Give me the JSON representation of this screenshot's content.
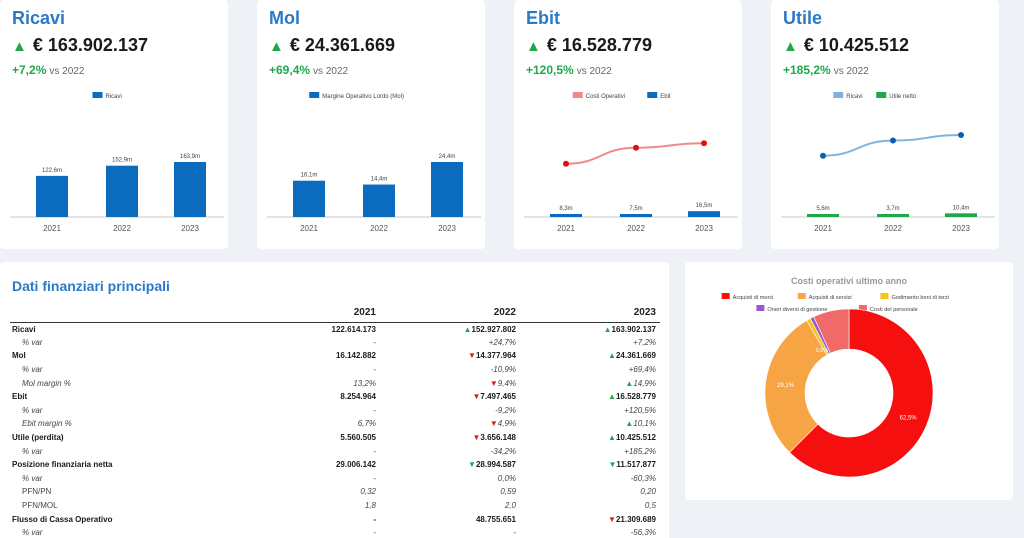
{
  "kpis": [
    {
      "title": "Ricavi",
      "value": "€ 163.902.137",
      "delta": "+7,2%",
      "vs": "vs 2022",
      "chart_data": {
        "type": "bar",
        "categories": [
          "2021",
          "2022",
          "2023"
        ],
        "series": [
          {
            "name": "Ricavi",
            "values": [
              122.6,
              152.9,
              163.9
            ],
            "labels": [
              "122,6m",
              "152,9m",
              "163,9m"
            ],
            "color": "#0b6bbf"
          }
        ]
      }
    },
    {
      "title": "Mol",
      "value": "€ 24.361.669",
      "delta": "+69,4%",
      "vs": "vs 2022",
      "chart_data": {
        "type": "bar",
        "categories": [
          "2021",
          "2022",
          "2023"
        ],
        "series": [
          {
            "name": "Margine Operativo Lordo (Mol)",
            "values": [
              16.1,
              14.4,
              24.4
            ],
            "labels": [
              "16,1m",
              "14,4m",
              "24,4m"
            ],
            "color": "#0b6bbf"
          }
        ]
      }
    },
    {
      "title": "Ebit",
      "value": "€ 16.528.779",
      "delta": "+120,5%",
      "vs": "vs 2022",
      "chart_data": {
        "type": "bar+line",
        "categories": [
          "2021",
          "2022",
          "2023"
        ],
        "series": [
          {
            "name": "Costi Operativi",
            "kind": "line",
            "values": [
              106.5,
              138.5,
              147.4
            ],
            "color": "#f08a8a",
            "dot": "#e01010"
          },
          {
            "name": "Ebit",
            "kind": "bar",
            "values": [
              8.3,
              7.5,
              16.5
            ],
            "labels": [
              "8,3m",
              "7,5m",
              "16,5m"
            ],
            "color": "#0b6bbf"
          }
        ]
      }
    },
    {
      "title": "Utile",
      "value": "€ 10.425.512",
      "delta": "+185,2%",
      "vs": "vs 2022",
      "chart_data": {
        "type": "bar+line",
        "categories": [
          "2021",
          "2022",
          "2023"
        ],
        "series": [
          {
            "name": "Ricavi",
            "kind": "line",
            "values": [
              122.6,
              152.9,
              163.9
            ],
            "color": "#7fb3dd",
            "dot": "#0b5fb0"
          },
          {
            "name": "Utile netto",
            "kind": "bar",
            "values": [
              5.6,
              3.7,
              10.4
            ],
            "labels": [
              "5,6m",
              "3,7m",
              "10,4m"
            ],
            "color": "#1fa84a"
          }
        ]
      }
    }
  ],
  "table": {
    "title": "Dati finanziari principali",
    "headers": [
      "",
      "2021",
      "2022",
      "2023"
    ],
    "rows": [
      {
        "type": "main",
        "label": "Ricavi",
        "cells": [
          {
            "v": "122.614.173"
          },
          {
            "v": "152.927.802",
            "a": "up"
          },
          {
            "v": "163.902.137",
            "a": "up"
          }
        ]
      },
      {
        "type": "sub",
        "label": "% var",
        "cells": [
          {
            "v": "-"
          },
          {
            "v": "+24,7%"
          },
          {
            "v": "+7,2%"
          }
        ]
      },
      {
        "type": "main",
        "label": "Mol",
        "cells": [
          {
            "v": "16.142.882"
          },
          {
            "v": "14.377.964",
            "a": "down"
          },
          {
            "v": "24.361.669",
            "a": "up"
          }
        ]
      },
      {
        "type": "sub",
        "label": "% var",
        "cells": [
          {
            "v": "-"
          },
          {
            "v": "-10,9%",
            "neg": true
          },
          {
            "v": "+69,4%"
          }
        ]
      },
      {
        "type": "sub",
        "label": "Mol margin %",
        "cells": [
          {
            "v": "13,2%"
          },
          {
            "v": "9,4%",
            "a": "down"
          },
          {
            "v": "14,9%",
            "a": "up"
          }
        ]
      },
      {
        "type": "main",
        "label": "Ebit",
        "cells": [
          {
            "v": "8.254.964"
          },
          {
            "v": "7.497.465",
            "a": "down"
          },
          {
            "v": "16.528.779",
            "a": "up"
          }
        ]
      },
      {
        "type": "sub",
        "label": "% var",
        "cells": [
          {
            "v": "-"
          },
          {
            "v": "-9,2%",
            "neg": true
          },
          {
            "v": "+120,5%"
          }
        ]
      },
      {
        "type": "sub",
        "label": "Ebit margin %",
        "cells": [
          {
            "v": "6,7%"
          },
          {
            "v": "4,9%",
            "a": "down"
          },
          {
            "v": "10,1%",
            "a": "up"
          }
        ]
      },
      {
        "type": "main",
        "label": "Utile (perdita)",
        "cells": [
          {
            "v": "5.560.505"
          },
          {
            "v": "3.656.148",
            "a": "down"
          },
          {
            "v": "10.425.512",
            "a": "up"
          }
        ]
      },
      {
        "type": "sub",
        "label": "% var",
        "cells": [
          {
            "v": "-"
          },
          {
            "v": "-34,2%",
            "neg": true
          },
          {
            "v": "+185,2%"
          }
        ]
      },
      {
        "type": "main",
        "label": "Posizione finanziaria netta",
        "cells": [
          {
            "v": "29.006.142"
          },
          {
            "v": "28.994.587",
            "a": "downgreen"
          },
          {
            "v": "11.517.877",
            "a": "downgreen"
          }
        ]
      },
      {
        "type": "sub",
        "label": "% var",
        "cells": [
          {
            "v": "-"
          },
          {
            "v": "0,0%"
          },
          {
            "v": "-60,3%"
          }
        ]
      },
      {
        "type": "subplain",
        "label": "PFN/PN",
        "cells": [
          {
            "v": "0,32"
          },
          {
            "v": "0,59"
          },
          {
            "v": "0,20"
          }
        ]
      },
      {
        "type": "subplain",
        "label": "PFN/MOL",
        "cells": [
          {
            "v": "1,8"
          },
          {
            "v": "2,0"
          },
          {
            "v": "0,5"
          }
        ]
      },
      {
        "type": "main",
        "label": "Flusso di Cassa Operativo",
        "cells": [
          {
            "v": "-"
          },
          {
            "v": "48.755.651"
          },
          {
            "v": "21.309.689",
            "a": "down"
          }
        ]
      },
      {
        "type": "sub",
        "label": "% var",
        "cells": [
          {
            "v": "-"
          },
          {
            "v": "-"
          },
          {
            "v": "-56,3%",
            "neg": true
          }
        ]
      }
    ]
  },
  "pie": {
    "title": "Costi operativi ultimo anno",
    "chart_data": {
      "type": "pie",
      "slices": [
        {
          "name": "Acquisti di merci",
          "value": 62.5,
          "label": "62,5%",
          "color": "#f50f0f"
        },
        {
          "name": "Acquisti di servizi",
          "value": 29.1,
          "label": "29,1%",
          "color": "#f7a444"
        },
        {
          "name": "Godimento beni di terzi",
          "value": 0.8,
          "label": "",
          "color": "#f5c518"
        },
        {
          "name": "Oneri diversi di gestione",
          "value": 0.7,
          "label": "",
          "color": "#9b59d0"
        },
        {
          "name": "Costi del personale",
          "value": 6.9,
          "label": "",
          "color": "#f06a6a"
        }
      ],
      "small_label": "0,5%"
    }
  }
}
